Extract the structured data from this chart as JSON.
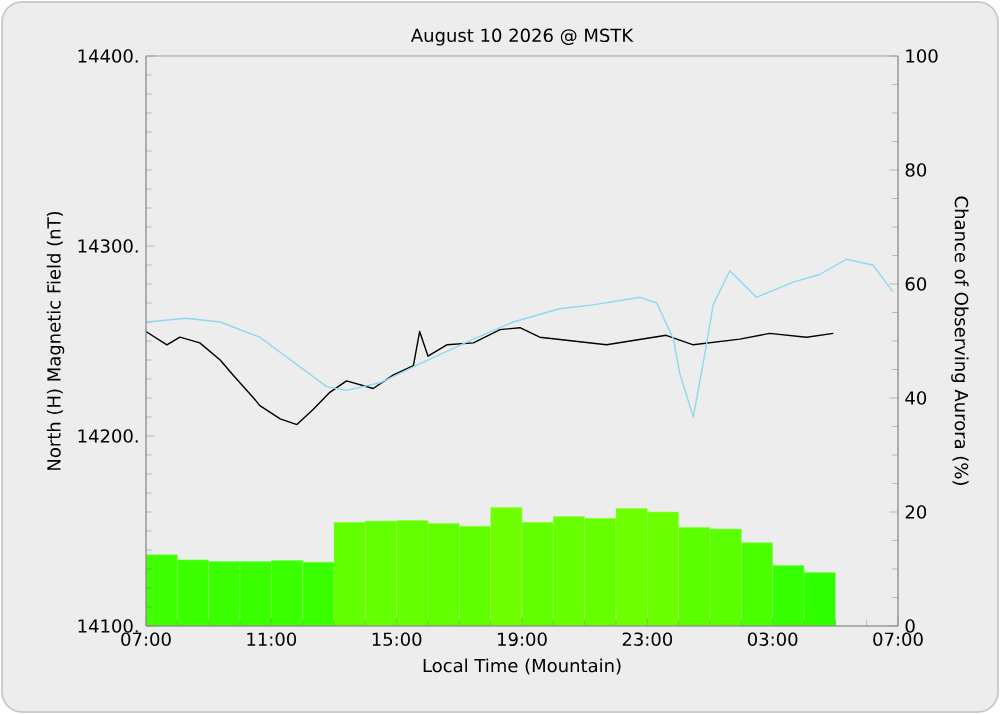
{
  "chart_data": {
    "type": "line",
    "title": "August 10 2026 @ MSTK",
    "xlabel": "Local Time (Mountain)",
    "ylabel": "North (H) Magnetic Field (nT)",
    "y2label": "Chance of Observing Aurora (%)",
    "xlim": [
      "2026-08-10T07:00",
      "2026-08-11T07:00"
    ],
    "xticks": [
      {
        "value": "2026-08-10T07:00",
        "label": "07:00"
      },
      {
        "value": "2026-08-10T11:00",
        "label": "11:00"
      },
      {
        "value": "2026-08-10T15:00",
        "label": "15:00"
      },
      {
        "value": "2026-08-10T19:00",
        "label": "19:00"
      },
      {
        "value": "2026-08-10T23:00",
        "label": "23:00"
      },
      {
        "value": "2026-08-11T03:00",
        "label": "03:00"
      },
      {
        "value": "2026-08-11T07:00",
        "label": "07:00"
      }
    ],
    "ylim": [
      14100,
      14400
    ],
    "yticks": [
      {
        "value": 14100,
        "label": "14100."
      },
      {
        "value": 14200,
        "label": "14200."
      },
      {
        "value": 14300,
        "label": "14300."
      },
      {
        "value": 14400,
        "label": "14400."
      }
    ],
    "y2lim": [
      0,
      100
    ],
    "y2ticks": [
      0,
      20,
      40,
      60,
      80,
      100
    ],
    "series": [
      {
        "type": "bar",
        "axis": "y2",
        "x": [
          "2026-08-10T07:30",
          "2026-08-10T08:30",
          "2026-08-10T09:30",
          "2026-08-10T10:30",
          "2026-08-10T11:30",
          "2026-08-10T12:30",
          "2026-08-10T13:30",
          "2026-08-10T14:30",
          "2026-08-10T15:30",
          "2026-08-10T16:30",
          "2026-08-10T17:30",
          "2026-08-10T18:30",
          "2026-08-10T19:30",
          "2026-08-10T20:30",
          "2026-08-10T21:30",
          "2026-08-10T22:30",
          "2026-08-10T23:30",
          "2026-08-11T00:30",
          "2026-08-11T01:30",
          "2026-08-11T02:30",
          "2026-08-11T03:30",
          "2026-08-11T04:30"
        ],
        "values": [
          12.5,
          11.6,
          11.3,
          11.3,
          11.5,
          11.2,
          18.2,
          18.4,
          18.5,
          18.0,
          17.5,
          20.8,
          18.2,
          19.2,
          18.9,
          20.6,
          20.0,
          17.3,
          17.0,
          14.6,
          10.6,
          9.4
        ],
        "colors": [
          "#40ff00",
          "#3cff00",
          "#3aff00",
          "#3aff00",
          "#3cff00",
          "#3aff00",
          "#62ff00",
          "#64ff00",
          "#64ff00",
          "#62ff00",
          "#60ff00",
          "#70ff00",
          "#62ff00",
          "#68ff00",
          "#66ff00",
          "#6eff00",
          "#6cff00",
          "#5cff00",
          "#5aff00",
          "#4cff00",
          "#36ff00",
          "#30ff00"
        ]
      },
      {
        "color": "#000000",
        "x": [
          "2026-08-10T07:00",
          "2026-08-10T07:40",
          "2026-08-10T08:05",
          "2026-08-10T08:43",
          "2026-08-10T09:22",
          "2026-08-10T09:47",
          "2026-08-10T10:26",
          "2026-08-10T10:38",
          "2026-08-10T11:17",
          "2026-08-10T11:49",
          "2026-08-10T12:20",
          "2026-08-10T12:52",
          "2026-08-10T13:24",
          "2026-08-10T14:15",
          "2026-08-10T14:53",
          "2026-08-10T15:32",
          "2026-08-10T15:44",
          "2026-08-10T16:00",
          "2026-08-10T16:36",
          "2026-08-10T17:27",
          "2026-08-10T18:18",
          "2026-08-10T18:56",
          "2026-08-10T19:34",
          "2026-08-10T21:42",
          "2026-08-10T23:36",
          "2026-08-11T00:28",
          "2026-08-11T01:57",
          "2026-08-11T02:54",
          "2026-08-11T04:05",
          "2026-08-11T04:56"
        ],
        "values": [
          14255,
          14248,
          14252,
          14249,
          14240,
          14232,
          14220,
          14216,
          14209,
          14206,
          14214,
          14223,
          14229,
          14225,
          14232,
          14237,
          14255,
          14242,
          14248,
          14249,
          14256,
          14257,
          14252,
          14248,
          14253,
          14248,
          14251,
          14254,
          14252,
          14254
        ]
      },
      {
        "color": "#8fd8f0",
        "x": [
          "2026-08-10T07:02",
          "2026-08-10T08:17",
          "2026-08-10T09:22",
          "2026-08-10T10:38",
          "2026-08-10T11:42",
          "2026-08-10T12:46",
          "2026-08-10T13:24",
          "2026-08-10T14:28",
          "2026-08-10T15:44",
          "2026-08-10T17:27",
          "2026-08-10T18:43",
          "2026-08-10T20:12",
          "2026-08-10T21:16",
          "2026-08-10T22:46",
          "2026-08-10T23:18",
          "2026-08-10T23:50",
          "2026-08-11T00:02",
          "2026-08-11T00:28",
          "2026-08-11T00:48",
          "2026-08-11T01:06",
          "2026-08-11T01:38",
          "2026-08-11T02:29",
          "2026-08-11T03:39",
          "2026-08-11T04:30",
          "2026-08-11T05:21",
          "2026-08-11T06:12",
          "2026-08-11T06:50"
        ],
        "values": [
          14260,
          14262,
          14260,
          14252,
          14239,
          14226,
          14224,
          14228,
          14238,
          14251,
          14260,
          14267,
          14269,
          14273,
          14270,
          14251,
          14233,
          14210,
          14240,
          14269,
          14287,
          14273,
          14281,
          14285,
          14293,
          14290,
          14276
        ]
      }
    ]
  }
}
